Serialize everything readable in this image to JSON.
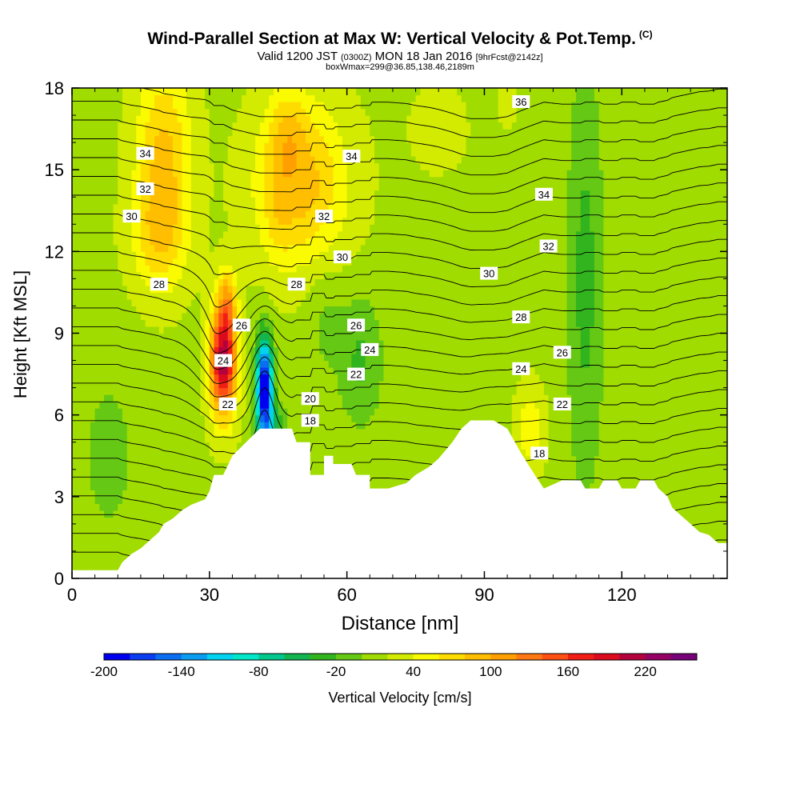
{
  "title": "Wind-Parallel Section at Max W: Vertical Velocity & Pot.Temp.",
  "title_mark": "(C)",
  "subtitle_main": "Valid 1200 JST",
  "subtitle_z": "(0300Z)",
  "subtitle_date": "MON 18 Jan 2016",
  "subtitle_fcst": "[9hrFcst@2142z]",
  "box_info": "boxWmax=299@36.85,138.46,2189m",
  "chart_data": {
    "type": "heatmap",
    "title": "Wind-Parallel Section at Max W: Vertical Velocity & Pot.Temp.",
    "xlabel": "Distance [nm]",
    "ylabel": "Height [Kft MSL]",
    "xlim": [
      0,
      143
    ],
    "ylim": [
      0,
      18
    ],
    "x_ticks": [
      0,
      30,
      60,
      90,
      120
    ],
    "y_ticks": [
      0,
      3,
      6,
      9,
      12,
      15,
      18
    ],
    "colorbar": {
      "label": "Vertical Velocity [cm/s]",
      "tick_labels": [
        "-200",
        "-140",
        "-80",
        "-20",
        "40",
        "100",
        "160",
        "220"
      ],
      "min": -200,
      "max": 260,
      "step": 20,
      "colors": [
        "#0000f0",
        "#0a3cf0",
        "#0a6ef0",
        "#0a9cf0",
        "#00d2f0",
        "#00e6c8",
        "#00c88c",
        "#14b450",
        "#32b41e",
        "#64c814",
        "#a0dc00",
        "#d2eb00",
        "#fafa00",
        "#ffdc00",
        "#ffbe00",
        "#ffa000",
        "#ff7814",
        "#ff5014",
        "#f01e14",
        "#dc0a1e",
        "#b4003c",
        "#960064",
        "#780078"
      ]
    },
    "terrain": [
      [
        0,
        0.3
      ],
      [
        10,
        0.3
      ],
      [
        11,
        0.6
      ],
      [
        13,
        0.9
      ],
      [
        15,
        1.1
      ],
      [
        17,
        1.4
      ],
      [
        19,
        1.7
      ],
      [
        20,
        2.0
      ],
      [
        22,
        2.2
      ],
      [
        24,
        2.5
      ],
      [
        26,
        2.7
      ],
      [
        29,
        2.9
      ],
      [
        30,
        3.2
      ],
      [
        31,
        3.8
      ],
      [
        33,
        3.8
      ],
      [
        35,
        4.5
      ],
      [
        38,
        5.0
      ],
      [
        41,
        5.5
      ],
      [
        48,
        5.5
      ],
      [
        49,
        5.0
      ],
      [
        52,
        5.0
      ],
      [
        52,
        3.8
      ],
      [
        55,
        3.8
      ],
      [
        55,
        4.5
      ],
      [
        57,
        4.5
      ],
      [
        57,
        4.2
      ],
      [
        61,
        4.2
      ],
      [
        62,
        3.8
      ],
      [
        65,
        3.8
      ],
      [
        65,
        3.3
      ],
      [
        69,
        3.3
      ],
      [
        73,
        3.5
      ],
      [
        75,
        3.8
      ],
      [
        78,
        4.1
      ],
      [
        80,
        4.4
      ],
      [
        83,
        5.0
      ],
      [
        85,
        5.5
      ],
      [
        87,
        5.8
      ],
      [
        92,
        5.8
      ],
      [
        95,
        5.5
      ],
      [
        98,
        4.6
      ],
      [
        101,
        3.8
      ],
      [
        103,
        3.3
      ],
      [
        107,
        3.6
      ],
      [
        111,
        3.6
      ],
      [
        112,
        3.3
      ],
      [
        115,
        3.3
      ],
      [
        116,
        3.6
      ],
      [
        119,
        3.6
      ],
      [
        120,
        3.3
      ],
      [
        123,
        3.3
      ],
      [
        124,
        3.6
      ],
      [
        127,
        3.6
      ],
      [
        128,
        3.3
      ],
      [
        130,
        3.0
      ],
      [
        131,
        2.6
      ],
      [
        133,
        2.3
      ],
      [
        135,
        2.0
      ],
      [
        137,
        1.7
      ],
      [
        139,
        1.6
      ],
      [
        141,
        1.3
      ],
      [
        143,
        1.3
      ]
    ],
    "theta_labels": [
      {
        "text": "36",
        "x": 98,
        "y": 17.5
      },
      {
        "text": "34",
        "x": 16,
        "y": 15.6
      },
      {
        "text": "34",
        "x": 61,
        "y": 15.5
      },
      {
        "text": "32",
        "x": 16,
        "y": 14.3
      },
      {
        "text": "32",
        "x": 55,
        "y": 13.3
      },
      {
        "text": "34",
        "x": 103,
        "y": 14.1
      },
      {
        "text": "30",
        "x": 13,
        "y": 13.3
      },
      {
        "text": "32",
        "x": 104,
        "y": 12.2
      },
      {
        "text": "30",
        "x": 59,
        "y": 11.8
      },
      {
        "text": "30",
        "x": 91,
        "y": 11.2
      },
      {
        "text": "28",
        "x": 19,
        "y": 10.8
      },
      {
        "text": "28",
        "x": 49,
        "y": 10.8
      },
      {
        "text": "28",
        "x": 98,
        "y": 9.6
      },
      {
        "text": "26",
        "x": 37,
        "y": 9.3
      },
      {
        "text": "26",
        "x": 62,
        "y": 9.3
      },
      {
        "text": "24",
        "x": 65,
        "y": 8.4
      },
      {
        "text": "26",
        "x": 107,
        "y": 8.3
      },
      {
        "text": "24",
        "x": 33,
        "y": 8.0
      },
      {
        "text": "22",
        "x": 62,
        "y": 7.5
      },
      {
        "text": "24",
        "x": 98,
        "y": 7.7
      },
      {
        "text": "20",
        "x": 52,
        "y": 6.6
      },
      {
        "text": "22",
        "x": 34,
        "y": 6.4
      },
      {
        "text": "22",
        "x": 107,
        "y": 6.4
      },
      {
        "text": "18",
        "x": 52,
        "y": 5.8
      },
      {
        "text": "18",
        "x": 102,
        "y": 4.6
      }
    ]
  }
}
